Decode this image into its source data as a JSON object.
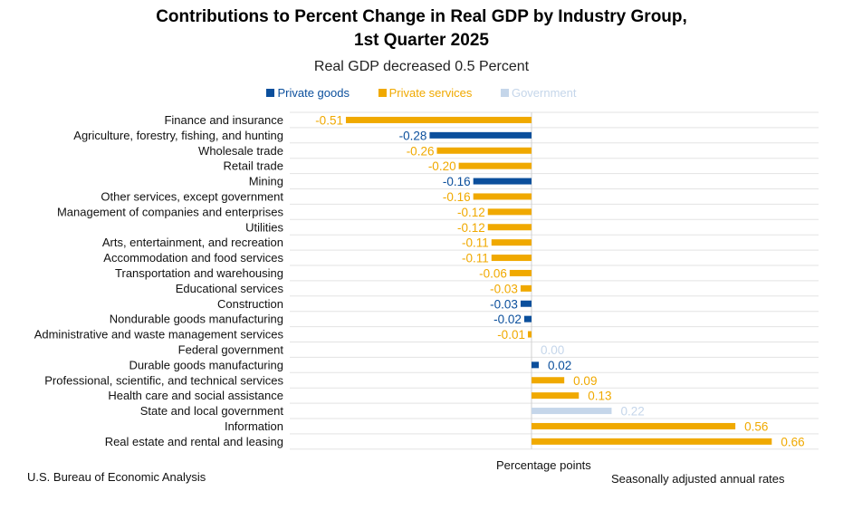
{
  "colors": {
    "private_goods": "#0b4f9c",
    "private_services": "#f0a900",
    "government": "#c5d6ea"
  },
  "chart_data": {
    "type": "bar",
    "orientation": "horizontal",
    "title": "Contributions to Percent Change in Real GDP by Industry Group,",
    "title_line2": "1st Quarter 2025",
    "subtitle": "Real GDP decreased 0.5 Percent",
    "xlabel": "Percentage points",
    "xlim": [
      -0.62,
      0.7
    ],
    "legend": [
      {
        "key": "private_goods",
        "label": "Private goods"
      },
      {
        "key": "private_services",
        "label": "Private services"
      },
      {
        "key": "government",
        "label": "Government"
      }
    ],
    "bars": [
      {
        "category": "Finance and insurance",
        "value": -0.51,
        "label": "-0.51",
        "group": "private_services"
      },
      {
        "category": "Agriculture, forestry, fishing, and hunting",
        "value": -0.28,
        "label": "-0.28",
        "group": "private_goods"
      },
      {
        "category": "Wholesale trade",
        "value": -0.26,
        "label": "-0.26",
        "group": "private_services"
      },
      {
        "category": "Retail trade",
        "value": -0.2,
        "label": "-0.20",
        "group": "private_services"
      },
      {
        "category": "Mining",
        "value": -0.16,
        "label": "-0.16",
        "group": "private_goods"
      },
      {
        "category": "Other services, except government",
        "value": -0.16,
        "label": "-0.16",
        "group": "private_services"
      },
      {
        "category": "Management of companies and enterprises",
        "value": -0.12,
        "label": "-0.12",
        "group": "private_services"
      },
      {
        "category": "Utilities",
        "value": -0.12,
        "label": "-0.12",
        "group": "private_services"
      },
      {
        "category": "Arts, entertainment, and recreation",
        "value": -0.11,
        "label": "-0.11",
        "group": "private_services"
      },
      {
        "category": "Accommodation and food services",
        "value": -0.11,
        "label": "-0.11",
        "group": "private_services"
      },
      {
        "category": "Transportation and warehousing",
        "value": -0.06,
        "label": "-0.06",
        "group": "private_services"
      },
      {
        "category": "Educational services",
        "value": -0.03,
        "label": "-0.03",
        "group": "private_services"
      },
      {
        "category": "Construction",
        "value": -0.03,
        "label": "-0.03",
        "group": "private_goods"
      },
      {
        "category": "Nondurable goods manufacturing",
        "value": -0.02,
        "label": "-0.02",
        "group": "private_goods"
      },
      {
        "category": "Administrative and waste management services",
        "value": -0.01,
        "label": "-0.01",
        "group": "private_services"
      },
      {
        "category": "Federal government",
        "value": 0.0,
        "label": "0.00",
        "group": "government"
      },
      {
        "category": "Durable goods manufacturing",
        "value": 0.02,
        "label": "0.02",
        "group": "private_goods"
      },
      {
        "category": "Professional, scientific, and technical services",
        "value": 0.09,
        "label": "0.09",
        "group": "private_services"
      },
      {
        "category": "Health care and social assistance",
        "value": 0.13,
        "label": "0.13",
        "group": "private_services"
      },
      {
        "category": "State and local government",
        "value": 0.22,
        "label": "0.22",
        "group": "government"
      },
      {
        "category": "Information",
        "value": 0.56,
        "label": "0.56",
        "group": "private_services"
      },
      {
        "category": "Real estate and rental and leasing",
        "value": 0.66,
        "label": "0.66",
        "group": "private_services"
      }
    ]
  },
  "footer": {
    "source": "U.S. Bureau of Economic Analysis",
    "note": "Seasonally adjusted annual rates"
  }
}
